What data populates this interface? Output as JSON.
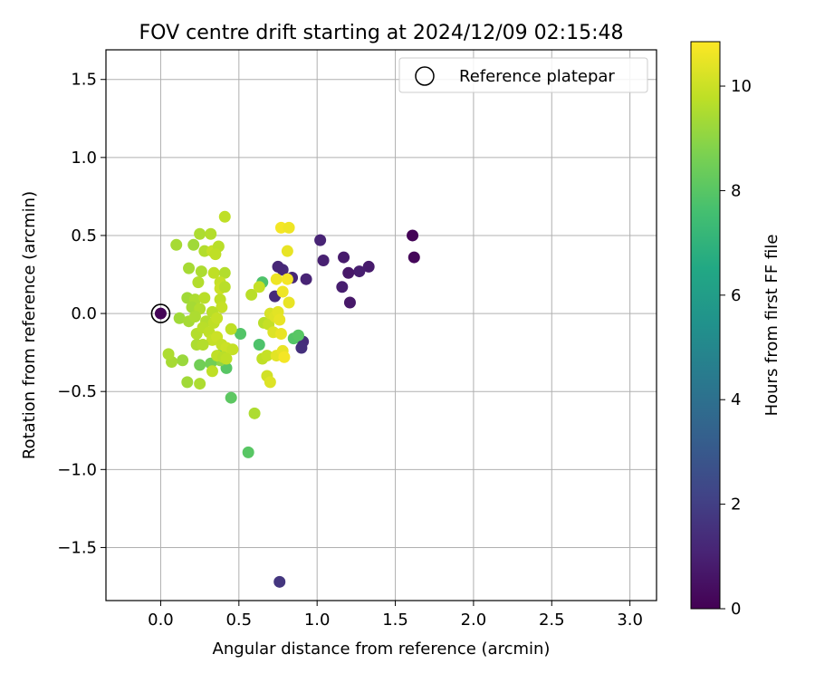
{
  "chart_data": {
    "type": "scatter",
    "title": "FOV centre drift starting at 2024/12/09 02:15:48",
    "xlabel": "Angular distance from reference (arcmin)",
    "ylabel": "Rotation from reference (arcmin)",
    "xlim": [
      -0.35,
      3.17
    ],
    "ylim": [
      -1.84,
      1.69
    ],
    "xticks": [
      0.0,
      0.5,
      1.0,
      1.5,
      2.0,
      2.5,
      3.0
    ],
    "xtick_labels": [
      "0.0",
      "0.5",
      "1.0",
      "1.5",
      "2.0",
      "2.5",
      "3.0"
    ],
    "yticks": [
      -1.5,
      -1.0,
      -0.5,
      0.0,
      0.5,
      1.0,
      1.5
    ],
    "ytick_labels": [
      "−1.5",
      "−1.0",
      "−0.5",
      "0.0",
      "0.5",
      "1.0",
      "1.5"
    ],
    "grid": true,
    "legend": {
      "position": "top-right",
      "label": "Reference platepar"
    },
    "reference": {
      "x": 0.0,
      "y": 0.0
    },
    "colorbar": {
      "label": "Hours from first FF file",
      "colormap": "viridis",
      "range": [
        0,
        10.85
      ],
      "ticks": [
        0,
        2,
        4,
        6,
        8,
        10
      ],
      "tick_labels": [
        "0",
        "2",
        "4",
        "6",
        "8",
        "10"
      ]
    },
    "points": [
      {
        "x": 1.61,
        "y": 0.5,
        "c": 0.1
      },
      {
        "x": 1.62,
        "y": 0.36,
        "c": 0.2
      },
      {
        "x": 1.33,
        "y": 0.3,
        "c": 0.8
      },
      {
        "x": 1.27,
        "y": 0.27,
        "c": 0.9
      },
      {
        "x": 1.2,
        "y": 0.26,
        "c": 0.7
      },
      {
        "x": 1.17,
        "y": 0.36,
        "c": 0.8
      },
      {
        "x": 1.16,
        "y": 0.17,
        "c": 0.9
      },
      {
        "x": 1.21,
        "y": 0.07,
        "c": 0.7
      },
      {
        "x": 1.04,
        "y": 0.34,
        "c": 1.0
      },
      {
        "x": 1.02,
        "y": 0.47,
        "c": 1.1
      },
      {
        "x": 0.93,
        "y": 0.22,
        "c": 1.1
      },
      {
        "x": 0.84,
        "y": 0.23,
        "c": 1.2
      },
      {
        "x": 0.78,
        "y": 0.28,
        "c": 1.3
      },
      {
        "x": 0.75,
        "y": 0.3,
        "c": 1.2
      },
      {
        "x": 0.73,
        "y": 0.11,
        "c": 1.3
      },
      {
        "x": 0.91,
        "y": -0.18,
        "c": 1.4
      },
      {
        "x": 0.9,
        "y": -0.22,
        "c": 1.5
      },
      {
        "x": 0.76,
        "y": -1.72,
        "c": 1.7
      },
      {
        "x": 0.65,
        "y": 0.2,
        "c": 7.8
      },
      {
        "x": 0.63,
        "y": -0.2,
        "c": 7.8
      },
      {
        "x": 0.56,
        "y": -0.89,
        "c": 8.0
      },
      {
        "x": 0.45,
        "y": -0.54,
        "c": 8.1
      },
      {
        "x": 0.51,
        "y": -0.13,
        "c": 7.9
      },
      {
        "x": 0.85,
        "y": -0.16,
        "c": 7.9
      },
      {
        "x": 0.88,
        "y": -0.14,
        "c": 8.0
      },
      {
        "x": 0.42,
        "y": -0.35,
        "c": 8.0
      },
      {
        "x": 0.4,
        "y": -0.25,
        "c": 8.1
      },
      {
        "x": 0.6,
        "y": -0.64,
        "c": 9.5
      },
      {
        "x": 0.38,
        "y": -0.3,
        "c": 9.0
      },
      {
        "x": 0.32,
        "y": -0.32,
        "c": 8.5
      },
      {
        "x": 0.25,
        "y": -0.33,
        "c": 8.5
      },
      {
        "x": 0.14,
        "y": -0.3,
        "c": 9.2
      },
      {
        "x": 0.07,
        "y": -0.31,
        "c": 9.4
      },
      {
        "x": 0.05,
        "y": -0.26,
        "c": 9.5
      },
      {
        "x": 0.17,
        "y": -0.44,
        "c": 9.3
      },
      {
        "x": 0.25,
        "y": -0.45,
        "c": 9.5
      },
      {
        "x": 0.33,
        "y": -0.37,
        "c": 9.8
      },
      {
        "x": 0.1,
        "y": 0.44,
        "c": 9.4
      },
      {
        "x": 0.21,
        "y": 0.44,
        "c": 9.3
      },
      {
        "x": 0.25,
        "y": 0.51,
        "c": 9.5
      },
      {
        "x": 0.32,
        "y": 0.51,
        "c": 9.6
      },
      {
        "x": 0.41,
        "y": 0.62,
        "c": 9.8
      },
      {
        "x": 0.28,
        "y": 0.4,
        "c": 9.6
      },
      {
        "x": 0.33,
        "y": 0.4,
        "c": 9.9
      },
      {
        "x": 0.37,
        "y": 0.43,
        "c": 9.7
      },
      {
        "x": 0.35,
        "y": 0.38,
        "c": 9.8
      },
      {
        "x": 0.18,
        "y": 0.29,
        "c": 9.4
      },
      {
        "x": 0.26,
        "y": 0.27,
        "c": 9.5
      },
      {
        "x": 0.34,
        "y": 0.26,
        "c": 9.8
      },
      {
        "x": 0.41,
        "y": 0.26,
        "c": 9.6
      },
      {
        "x": 0.24,
        "y": 0.2,
        "c": 9.6
      },
      {
        "x": 0.38,
        "y": 0.2,
        "c": 9.9
      },
      {
        "x": 0.38,
        "y": 0.16,
        "c": 10.0
      },
      {
        "x": 0.41,
        "y": 0.17,
        "c": 9.7
      },
      {
        "x": 0.17,
        "y": 0.1,
        "c": 9.3
      },
      {
        "x": 0.22,
        "y": 0.09,
        "c": 9.5
      },
      {
        "x": 0.28,
        "y": 0.1,
        "c": 9.7
      },
      {
        "x": 0.38,
        "y": 0.09,
        "c": 9.8
      },
      {
        "x": 0.2,
        "y": 0.04,
        "c": 9.4
      },
      {
        "x": 0.25,
        "y": 0.03,
        "c": 9.6
      },
      {
        "x": 0.39,
        "y": 0.04,
        "c": 9.9
      },
      {
        "x": 0.33,
        "y": 0.01,
        "c": 9.7
      },
      {
        "x": 0.12,
        "y": -0.03,
        "c": 9.3
      },
      {
        "x": 0.18,
        "y": -0.05,
        "c": 9.4
      },
      {
        "x": 0.22,
        "y": -0.02,
        "c": 9.5
      },
      {
        "x": 0.29,
        "y": -0.05,
        "c": 9.6
      },
      {
        "x": 0.34,
        "y": -0.06,
        "c": 9.8
      },
      {
        "x": 0.36,
        "y": -0.03,
        "c": 9.9
      },
      {
        "x": 0.23,
        "y": -0.13,
        "c": 9.6
      },
      {
        "x": 0.27,
        "y": -0.09,
        "c": 9.7
      },
      {
        "x": 0.31,
        "y": -0.12,
        "c": 9.8
      },
      {
        "x": 0.33,
        "y": -0.17,
        "c": 9.9
      },
      {
        "x": 0.36,
        "y": -0.15,
        "c": 10.0
      },
      {
        "x": 0.23,
        "y": -0.2,
        "c": 9.5
      },
      {
        "x": 0.27,
        "y": -0.2,
        "c": 9.6
      },
      {
        "x": 0.39,
        "y": -0.2,
        "c": 9.9
      },
      {
        "x": 0.42,
        "y": -0.22,
        "c": 10.0
      },
      {
        "x": 0.45,
        "y": -0.1,
        "c": 9.8
      },
      {
        "x": 0.46,
        "y": -0.23,
        "c": 9.9
      },
      {
        "x": 0.36,
        "y": -0.27,
        "c": 9.8
      },
      {
        "x": 0.4,
        "y": -0.28,
        "c": 9.7
      },
      {
        "x": 0.42,
        "y": -0.29,
        "c": 9.8
      },
      {
        "x": 0.58,
        "y": 0.12,
        "c": 9.7
      },
      {
        "x": 0.63,
        "y": 0.17,
        "c": 9.9
      },
      {
        "x": 0.66,
        "y": -0.06,
        "c": 9.7
      },
      {
        "x": 0.69,
        "y": -0.07,
        "c": 9.9
      },
      {
        "x": 0.7,
        "y": 0.0,
        "c": 10.2
      },
      {
        "x": 0.73,
        "y": -0.02,
        "c": 10.3
      },
      {
        "x": 0.75,
        "y": 0.01,
        "c": 10.4
      },
      {
        "x": 0.76,
        "y": -0.04,
        "c": 10.5
      },
      {
        "x": 0.72,
        "y": -0.12,
        "c": 10.3
      },
      {
        "x": 0.77,
        "y": -0.13,
        "c": 10.5
      },
      {
        "x": 0.65,
        "y": -0.29,
        "c": 9.8
      },
      {
        "x": 0.68,
        "y": -0.27,
        "c": 9.9
      },
      {
        "x": 0.68,
        "y": -0.4,
        "c": 10.1
      },
      {
        "x": 0.7,
        "y": -0.44,
        "c": 10.3
      },
      {
        "x": 0.74,
        "y": -0.27,
        "c": 10.4
      },
      {
        "x": 0.78,
        "y": -0.24,
        "c": 10.5
      },
      {
        "x": 0.79,
        "y": -0.28,
        "c": 10.7
      },
      {
        "x": 0.77,
        "y": 0.55,
        "c": 10.7
      },
      {
        "x": 0.82,
        "y": 0.55,
        "c": 10.6
      },
      {
        "x": 0.81,
        "y": 0.4,
        "c": 10.5
      },
      {
        "x": 0.74,
        "y": 0.22,
        "c": 10.6
      },
      {
        "x": 0.81,
        "y": 0.22,
        "c": 10.7
      },
      {
        "x": 0.78,
        "y": 0.14,
        "c": 10.6
      },
      {
        "x": 0.82,
        "y": 0.07,
        "c": 10.5
      },
      {
        "x": 0.0,
        "y": 0.0,
        "c": 0.1
      }
    ]
  }
}
